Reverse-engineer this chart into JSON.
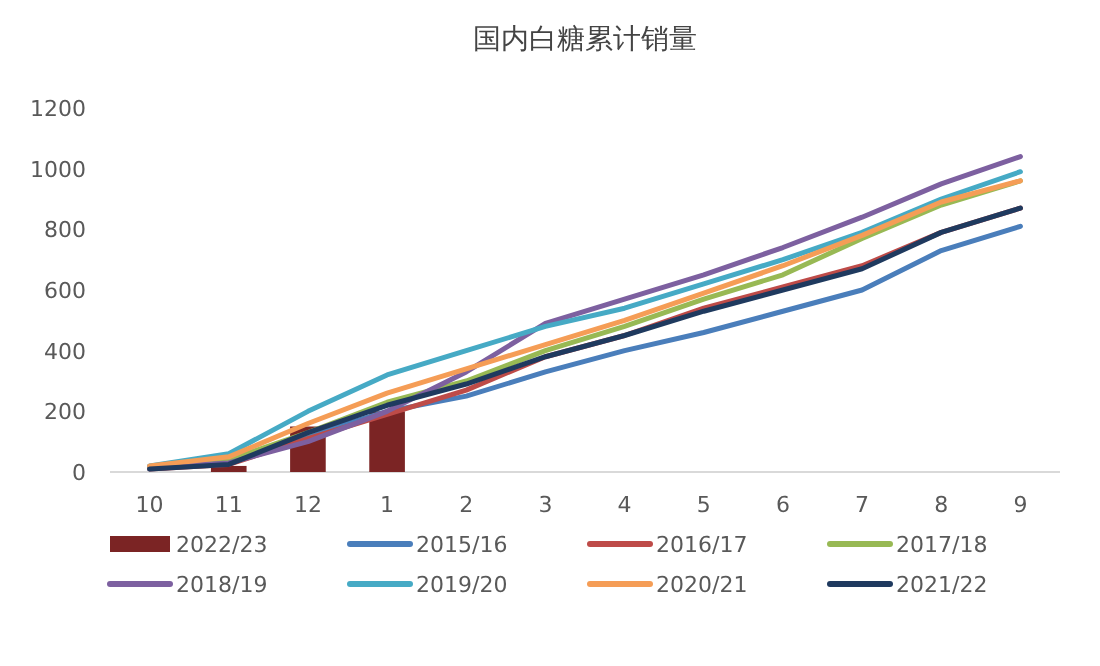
{
  "chart_data": {
    "type": "line",
    "title": "国内白糖累计销量",
    "categories": [
      "10",
      "11",
      "12",
      "1",
      "2",
      "3",
      "4",
      "5",
      "6",
      "7",
      "8",
      "9"
    ],
    "ylim": [
      0,
      1200
    ],
    "yticks": [
      0,
      200,
      400,
      600,
      800,
      1000,
      1200
    ],
    "grid": false,
    "legend": "bottom",
    "series": [
      {
        "name": "2022/23",
        "type": "bar",
        "color": "#7b2424",
        "values": [
          null,
          20,
          150,
          200,
          null,
          null,
          null,
          null,
          null,
          null,
          null,
          null
        ]
      },
      {
        "name": "2015/16",
        "color": "#4a7ebb",
        "values": [
          10,
          30,
          120,
          200,
          250,
          330,
          400,
          460,
          530,
          600,
          730,
          810
        ]
      },
      {
        "name": "2016/17",
        "color": "#be4b48",
        "values": [
          10,
          25,
          110,
          190,
          270,
          380,
          450,
          540,
          610,
          680,
          790,
          870
        ]
      },
      {
        "name": "2017/18",
        "color": "#98b954",
        "values": [
          15,
          40,
          130,
          230,
          300,
          400,
          480,
          570,
          650,
          770,
          880,
          960
        ]
      },
      {
        "name": "2018/19",
        "color": "#7d60a0",
        "values": [
          15,
          30,
          100,
          200,
          330,
          490,
          570,
          650,
          740,
          840,
          950,
          1040
        ]
      },
      {
        "name": "2019/20",
        "color": "#46aac5",
        "values": [
          20,
          60,
          200,
          320,
          400,
          480,
          540,
          620,
          700,
          790,
          900,
          990
        ]
      },
      {
        "name": "2020/21",
        "color": "#f59d56",
        "values": [
          20,
          50,
          160,
          260,
          340,
          420,
          500,
          590,
          680,
          780,
          890,
          960
        ]
      },
      {
        "name": "2021/22",
        "color": "#1f3a5f",
        "values": [
          10,
          25,
          130,
          220,
          290,
          380,
          450,
          530,
          600,
          670,
          790,
          870
        ]
      }
    ]
  }
}
